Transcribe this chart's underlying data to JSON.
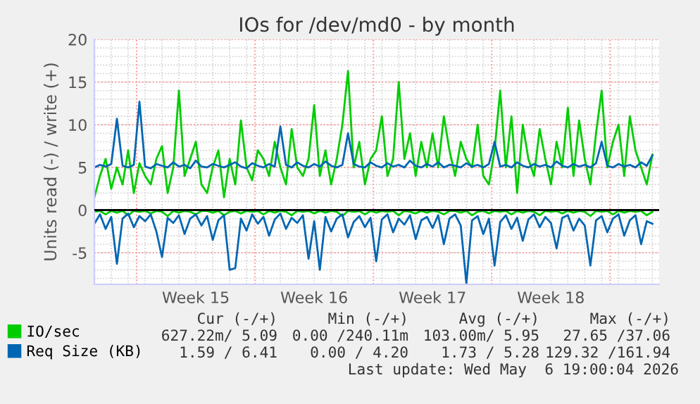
{
  "chart_data": {
    "type": "line",
    "title": "IOs for /dev/md0 - by month",
    "ylabel": "Units read (-) / write (+)",
    "categories": [
      null,
      null,
      null,
      null,
      null,
      null,
      null,
      null,
      null,
      null,
      null,
      null,
      null,
      null,
      null,
      null,
      null,
      null,
      "Week 15",
      null,
      null,
      null,
      null,
      null,
      null,
      null,
      null,
      null,
      null,
      null,
      null,
      null,
      null,
      null,
      null,
      null,
      null,
      null,
      null,
      "Week 16",
      null,
      null,
      null,
      null,
      null,
      null,
      null,
      null,
      null,
      null,
      null,
      null,
      null,
      null,
      null,
      null,
      null,
      null,
      null,
      null,
      "Week 17",
      null,
      null,
      null,
      null,
      null,
      null,
      null,
      null,
      null,
      null,
      null,
      null,
      null,
      null,
      null,
      null,
      null,
      null,
      null,
      null,
      "Week 18",
      null,
      null,
      null,
      null,
      null,
      null,
      null,
      null,
      null,
      null,
      null,
      null,
      null,
      null,
      null,
      null,
      null,
      null
    ],
    "series": [
      {
        "name": "IO/sec",
        "color": "#00cc00",
        "values": [
          1.5,
          4,
          6,
          2.5,
          5,
          3,
          7,
          2,
          5.5,
          4,
          3,
          6,
          7.5,
          2,
          5,
          14,
          4,
          6,
          8,
          3,
          2,
          5,
          7,
          1.5,
          6,
          3,
          10.5,
          5,
          3.5,
          7,
          6,
          4,
          8,
          5,
          3,
          9.5,
          5,
          4,
          6,
          12.3,
          4,
          7,
          3,
          6,
          10,
          16.3,
          5,
          8,
          3,
          6,
          7,
          11,
          4,
          6,
          15,
          6,
          9,
          4,
          8,
          5,
          9,
          5,
          11,
          7,
          4,
          8,
          6,
          5,
          10,
          4,
          3,
          7,
          14,
          5,
          11,
          2,
          10,
          6,
          4,
          9.5,
          6,
          3,
          8,
          5,
          12,
          4,
          10.5,
          6,
          3,
          9,
          14,
          5,
          8,
          10,
          4,
          11,
          7,
          5,
          3,
          6.5
        ]
      },
      {
        "color": "#00cc00",
        "values": [
          -0.2,
          -0.1,
          -0.5,
          -0.1,
          -0.3,
          -0.1,
          -0.6,
          -0.1,
          -0.2,
          -0.1,
          -0.4,
          -0.1,
          -0.2,
          -0.7,
          -0.1,
          -0.3,
          -0.1,
          -0.2,
          -0.5,
          -0.1,
          -0.1,
          -0.3,
          -0.1,
          -0.6,
          -0.2,
          -0.1,
          -0.4,
          -0.1,
          -0.2,
          -0.1,
          -0.5,
          -0.1,
          -0.3,
          -0.1,
          -0.2,
          -0.6,
          -0.1,
          -0.2,
          -0.1,
          -0.4,
          -0.1,
          -0.3,
          -0.1,
          -0.2,
          -0.7,
          -0.1,
          -0.2,
          -0.1,
          -0.5,
          -0.1,
          -0.3,
          -0.1,
          -0.2,
          -0.1,
          -0.6,
          -0.1,
          -0.2,
          -0.4,
          -0.1,
          -0.3,
          -0.1,
          -0.2,
          -0.5,
          -0.1,
          -0.1,
          -0.3,
          -0.1,
          -0.6,
          -0.2,
          -0.1,
          -0.4,
          -0.1,
          -0.2,
          -0.1,
          -0.5,
          -0.1,
          -0.3,
          -0.1,
          -0.2,
          -0.6,
          -0.1,
          -0.2,
          -0.1,
          -0.4,
          -0.1,
          -0.3,
          -0.1,
          -0.2,
          -0.7,
          -0.1,
          -0.2,
          -0.1,
          -0.5,
          -0.1,
          -0.3,
          -0.1,
          -0.2,
          -0.1,
          -0.6,
          -0.2
        ]
      },
      {
        "name": "Req Size (KB)",
        "color": "#0066b3",
        "values": [
          5,
          5.3,
          5.1,
          5.4,
          10.7,
          5.2,
          5.0,
          5.3,
          12.7,
          5.1,
          4.9,
          5.4,
          5.2,
          5.0,
          5.6,
          5.1,
          5.3,
          4.9,
          5.8,
          5.1,
          5.0,
          5.4,
          5.2,
          5.0,
          5.3,
          5.6,
          5.1,
          4.9,
          5.5,
          5.2,
          5.0,
          5.4,
          5.1,
          9.8,
          5.3,
          5.0,
          5.6,
          5.2,
          5.0,
          5.4,
          5.1,
          5.7,
          5.2,
          5.0,
          5.3,
          9.0,
          5.4,
          5.1,
          5.0,
          5.6,
          5.2,
          5.0,
          5.5,
          5.1,
          5.3,
          5.0,
          5.8,
          5.2,
          5.0,
          5.4,
          5.1,
          5.6,
          5.0,
          5.3,
          5.2,
          5.0,
          5.5,
          5.1,
          5.3,
          5.0,
          5.4,
          8.0,
          5.1,
          5.3,
          5.0,
          5.6,
          5.2,
          5.0,
          5.4,
          5.1,
          5.3,
          5.0,
          5.7,
          5.2,
          5.0,
          5.4,
          5.1,
          5.3,
          5.0,
          5.5,
          8.0,
          5.2,
          5.0,
          5.4,
          5.1,
          5.3,
          5.0,
          5.6,
          5.2,
          6.4
        ]
      },
      {
        "color": "#0066b3",
        "values": [
          -1.6,
          -0.5,
          -2.2,
          -0.8,
          -6.3,
          -1.0,
          -0.4,
          -2.0,
          -0.7,
          -1.3,
          -0.5,
          -2.5,
          -5.5,
          -0.9,
          -1.5,
          -0.6,
          -2.8,
          -1.0,
          -0.5,
          -1.8,
          -0.7,
          -3.5,
          -1.2,
          -0.6,
          -7.0,
          -6.8,
          -1.0,
          -2.4,
          -0.5,
          -1.6,
          -0.8,
          -3.0,
          -1.1,
          -0.4,
          -2.2,
          -0.9,
          -1.5,
          -0.6,
          -5.7,
          -1.3,
          -7.0,
          -0.8,
          -2.5,
          -1.0,
          -0.5,
          -3.2,
          -1.4,
          -0.7,
          -2.0,
          -0.9,
          -6.0,
          -1.1,
          -0.5,
          -2.6,
          -1.0,
          -1.7,
          -0.6,
          -3.4,
          -1.2,
          -0.8,
          -2.1,
          -0.6,
          -4.0,
          -1.0,
          -0.5,
          -1.8,
          -8.6,
          -1.2,
          -0.7,
          -2.8,
          -1.0,
          -6.5,
          -1.4,
          -0.6,
          -2.2,
          -0.9,
          -3.6,
          -1.1,
          -0.5,
          -2.0,
          -0.8,
          -1.5,
          -4.5,
          -0.9,
          -0.6,
          -2.4,
          -1.0,
          -1.8,
          -6.5,
          -1.2,
          -0.7,
          -2.6,
          -1.0,
          -0.5,
          -3.0,
          -1.2,
          -0.6,
          -4.0,
          -1.3,
          -1.6
        ]
      }
    ],
    "ref_lines": [
      {
        "axis": "y",
        "value": 0,
        "color": "#000000"
      }
    ],
    "ylim": [
      -8.7,
      20
    ],
    "yticks": [
      -5,
      0,
      5,
      10,
      15,
      20
    ],
    "grid": true,
    "legend": "bottom",
    "annotations": [
      "Cur (-/+)",
      "Min (-/+)",
      "Avg (-/+)",
      "Max (-/+)",
      "627.22m/ 5.09",
      "0.00 /240.11m",
      "103.00m/ 5.95",
      "27.65 /37.06",
      "1.59 / 6.41",
      "0.00 / 4.20",
      "1.73 / 5.28",
      "129.32 /161.94",
      "Last update: Wed May  6 19:00:04 2026"
    ]
  }
}
